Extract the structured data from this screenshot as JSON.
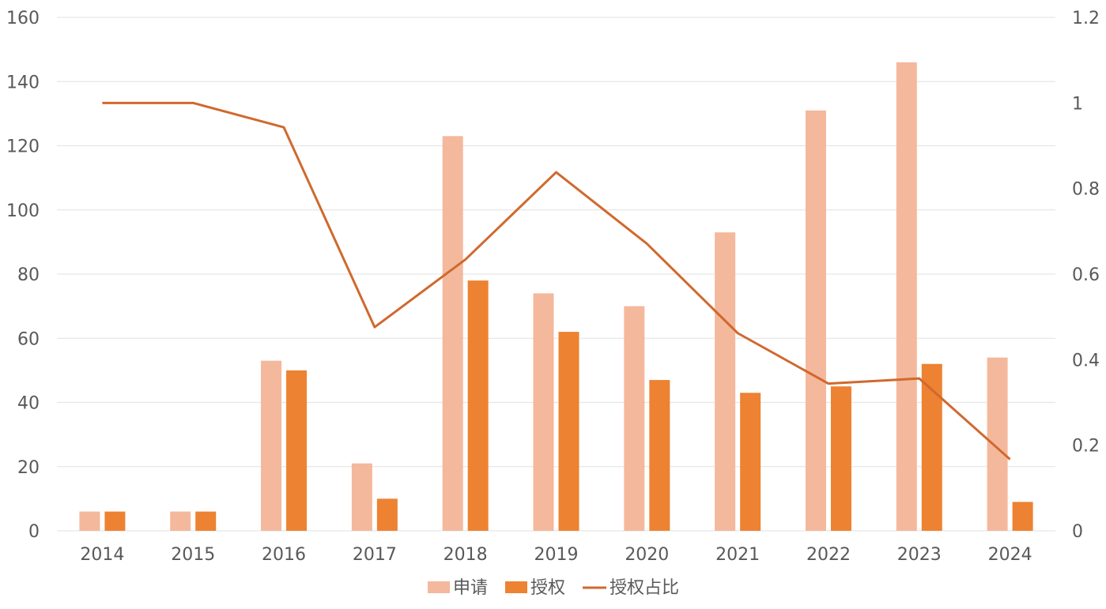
{
  "colors": {
    "apply": "#f4b89c",
    "grant": "#ed8232",
    "ratio": "#d0692e",
    "grid": "#e6e6e6",
    "text": "#595959"
  },
  "chart_data": {
    "type": "bar",
    "categories": [
      "2014",
      "2015",
      "2016",
      "2017",
      "2018",
      "2019",
      "2020",
      "2021",
      "2022",
      "2023",
      "2024"
    ],
    "series": [
      {
        "name": "申请",
        "type": "bar",
        "axis": "left",
        "values": [
          6,
          6,
          53,
          21,
          123,
          74,
          70,
          93,
          131,
          146,
          54
        ]
      },
      {
        "name": "授权",
        "type": "bar",
        "axis": "left",
        "values": [
          6,
          6,
          50,
          10,
          78,
          62,
          47,
          43,
          45,
          52,
          9
        ]
      },
      {
        "name": "授权占比",
        "type": "line",
        "axis": "right",
        "values": [
          1.0,
          1.0,
          0.943,
          0.476,
          0.634,
          0.838,
          0.671,
          0.462,
          0.344,
          0.356,
          0.167
        ]
      }
    ],
    "y_left": {
      "min": 0,
      "max": 160,
      "ticks": [
        "0",
        "20",
        "40",
        "60",
        "80",
        "100",
        "120",
        "140",
        "160"
      ]
    },
    "y_right": {
      "min": 0,
      "max": 1.2,
      "ticks": [
        "0",
        "0.2",
        "0.4",
        "0.6",
        "0.8",
        "1",
        "1.2"
      ]
    },
    "grid": true,
    "legend": "bottom-center",
    "title": "",
    "xlabel": "",
    "ylabel": ""
  }
}
